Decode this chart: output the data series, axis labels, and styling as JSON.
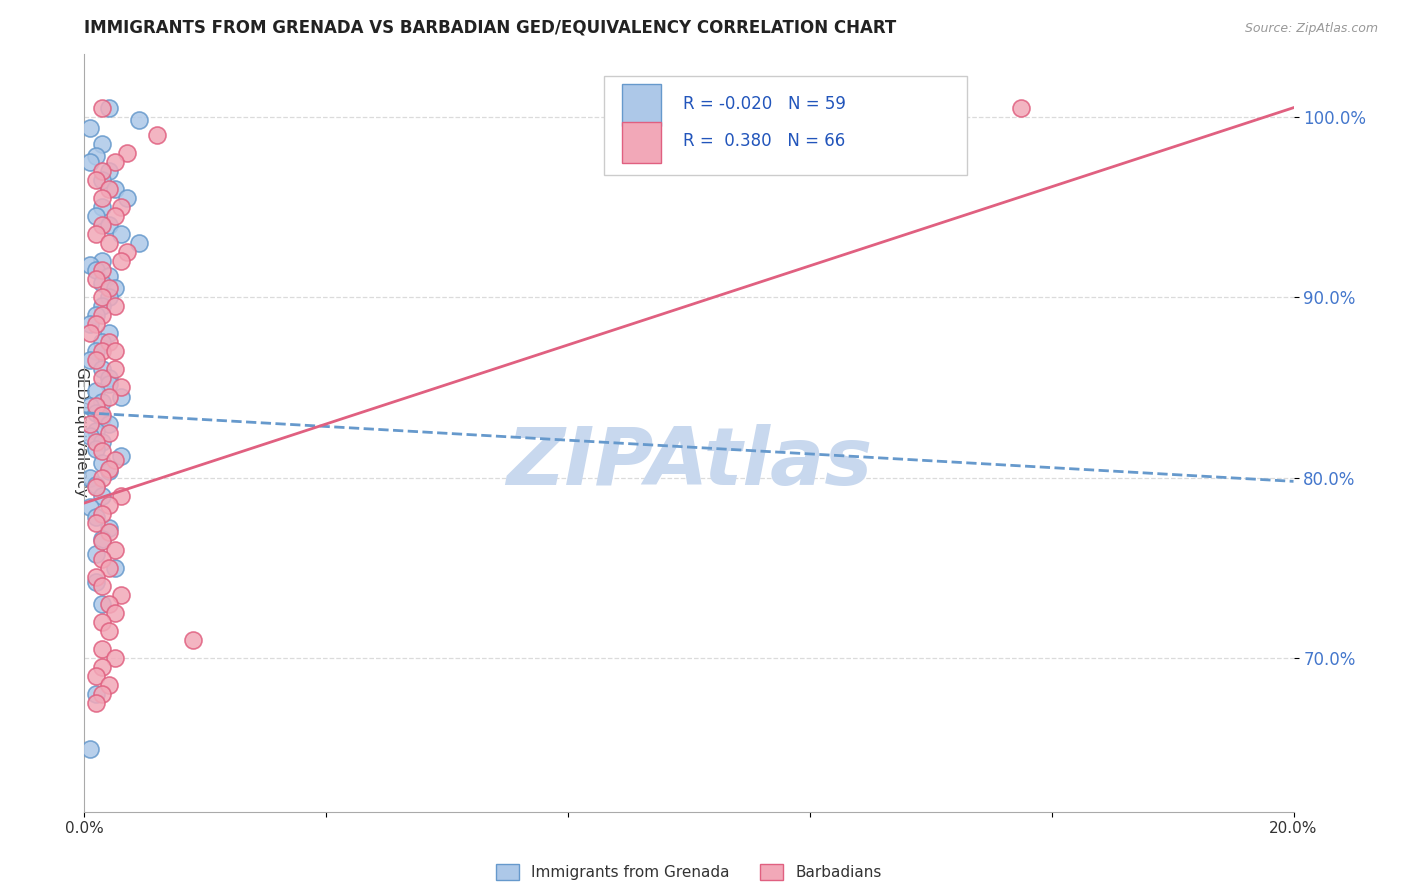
{
  "title": "IMMIGRANTS FROM GRENADA VS BARBADIAN GED/EQUIVALENCY CORRELATION CHART",
  "source": "Source: ZipAtlas.com",
  "ylabel": "GED/Equivalency",
  "ytick_labels": [
    "100.0%",
    "90.0%",
    "80.0%",
    "70.0%"
  ],
  "ytick_values": [
    1.0,
    0.9,
    0.8,
    0.7
  ],
  "xlim": [
    0.0,
    0.2
  ],
  "ylim": [
    0.615,
    1.035
  ],
  "legend_R1": "-0.020",
  "legend_N1": "59",
  "legend_R2": "0.380",
  "legend_N2": "66",
  "color_blue": "#adc8e8",
  "color_pink": "#f2a8b8",
  "color_blue_line": "#6699cc",
  "color_pink_line": "#e06080",
  "watermark_color": "#c8d8ee",
  "label1": "Immigrants from Grenada",
  "label2": "Barbadians",
  "blue_scatter_x": [
    0.004,
    0.009,
    0.001,
    0.003,
    0.002,
    0.001,
    0.004,
    0.003,
    0.005,
    0.007,
    0.003,
    0.002,
    0.004,
    0.006,
    0.009,
    0.003,
    0.001,
    0.002,
    0.004,
    0.003,
    0.005,
    0.004,
    0.003,
    0.002,
    0.001,
    0.004,
    0.003,
    0.002,
    0.001,
    0.003,
    0.004,
    0.004,
    0.002,
    0.006,
    0.003,
    0.001,
    0.002,
    0.003,
    0.004,
    0.002,
    0.001,
    0.003,
    0.002,
    0.006,
    0.003,
    0.004,
    0.001,
    0.002,
    0.003,
    0.001,
    0.002,
    0.004,
    0.003,
    0.002,
    0.005,
    0.002,
    0.003,
    0.002,
    0.001
  ],
  "blue_scatter_y": [
    1.005,
    0.998,
    0.994,
    0.985,
    0.978,
    0.975,
    0.97,
    0.965,
    0.96,
    0.955,
    0.95,
    0.945,
    0.94,
    0.935,
    0.93,
    0.92,
    0.918,
    0.915,
    0.912,
    0.908,
    0.905,
    0.9,
    0.895,
    0.89,
    0.885,
    0.88,
    0.875,
    0.87,
    0.865,
    0.86,
    0.855,
    0.852,
    0.848,
    0.845,
    0.842,
    0.84,
    0.836,
    0.833,
    0.83,
    0.826,
    0.823,
    0.82,
    0.816,
    0.812,
    0.808,
    0.804,
    0.8,
    0.796,
    0.79,
    0.784,
    0.778,
    0.772,
    0.766,
    0.758,
    0.75,
    0.742,
    0.73,
    0.68,
    0.65
  ],
  "pink_scatter_x": [
    0.003,
    0.012,
    0.007,
    0.005,
    0.003,
    0.002,
    0.004,
    0.003,
    0.006,
    0.005,
    0.003,
    0.002,
    0.004,
    0.007,
    0.006,
    0.003,
    0.002,
    0.004,
    0.003,
    0.005,
    0.003,
    0.002,
    0.001,
    0.004,
    0.003,
    0.002,
    0.005,
    0.003,
    0.006,
    0.004,
    0.002,
    0.003,
    0.001,
    0.004,
    0.002,
    0.003,
    0.005,
    0.004,
    0.003,
    0.002,
    0.006,
    0.004,
    0.003,
    0.002,
    0.004,
    0.003,
    0.005,
    0.003,
    0.004,
    0.002,
    0.003,
    0.006,
    0.004,
    0.005,
    0.003,
    0.004,
    0.018,
    0.003,
    0.005,
    0.003,
    0.002,
    0.004,
    0.003,
    0.002,
    0.155,
    0.005
  ],
  "pink_scatter_y": [
    1.005,
    0.99,
    0.98,
    0.975,
    0.97,
    0.965,
    0.96,
    0.955,
    0.95,
    0.945,
    0.94,
    0.935,
    0.93,
    0.925,
    0.92,
    0.915,
    0.91,
    0.905,
    0.9,
    0.895,
    0.89,
    0.885,
    0.88,
    0.875,
    0.87,
    0.865,
    0.86,
    0.855,
    0.85,
    0.845,
    0.84,
    0.835,
    0.83,
    0.825,
    0.82,
    0.815,
    0.81,
    0.805,
    0.8,
    0.795,
    0.79,
    0.785,
    0.78,
    0.775,
    0.77,
    0.765,
    0.76,
    0.755,
    0.75,
    0.745,
    0.74,
    0.735,
    0.73,
    0.725,
    0.72,
    0.715,
    0.71,
    0.705,
    0.7,
    0.695,
    0.69,
    0.685,
    0.68,
    0.675,
    1.005,
    0.87
  ],
  "blue_trend_x": [
    0.0,
    0.2
  ],
  "blue_trend_y": [
    0.836,
    0.798
  ],
  "pink_trend_x": [
    0.0,
    0.2
  ],
  "pink_trend_y": [
    0.786,
    1.005
  ],
  "grid_color": "#cccccc",
  "background_color": "#ffffff"
}
